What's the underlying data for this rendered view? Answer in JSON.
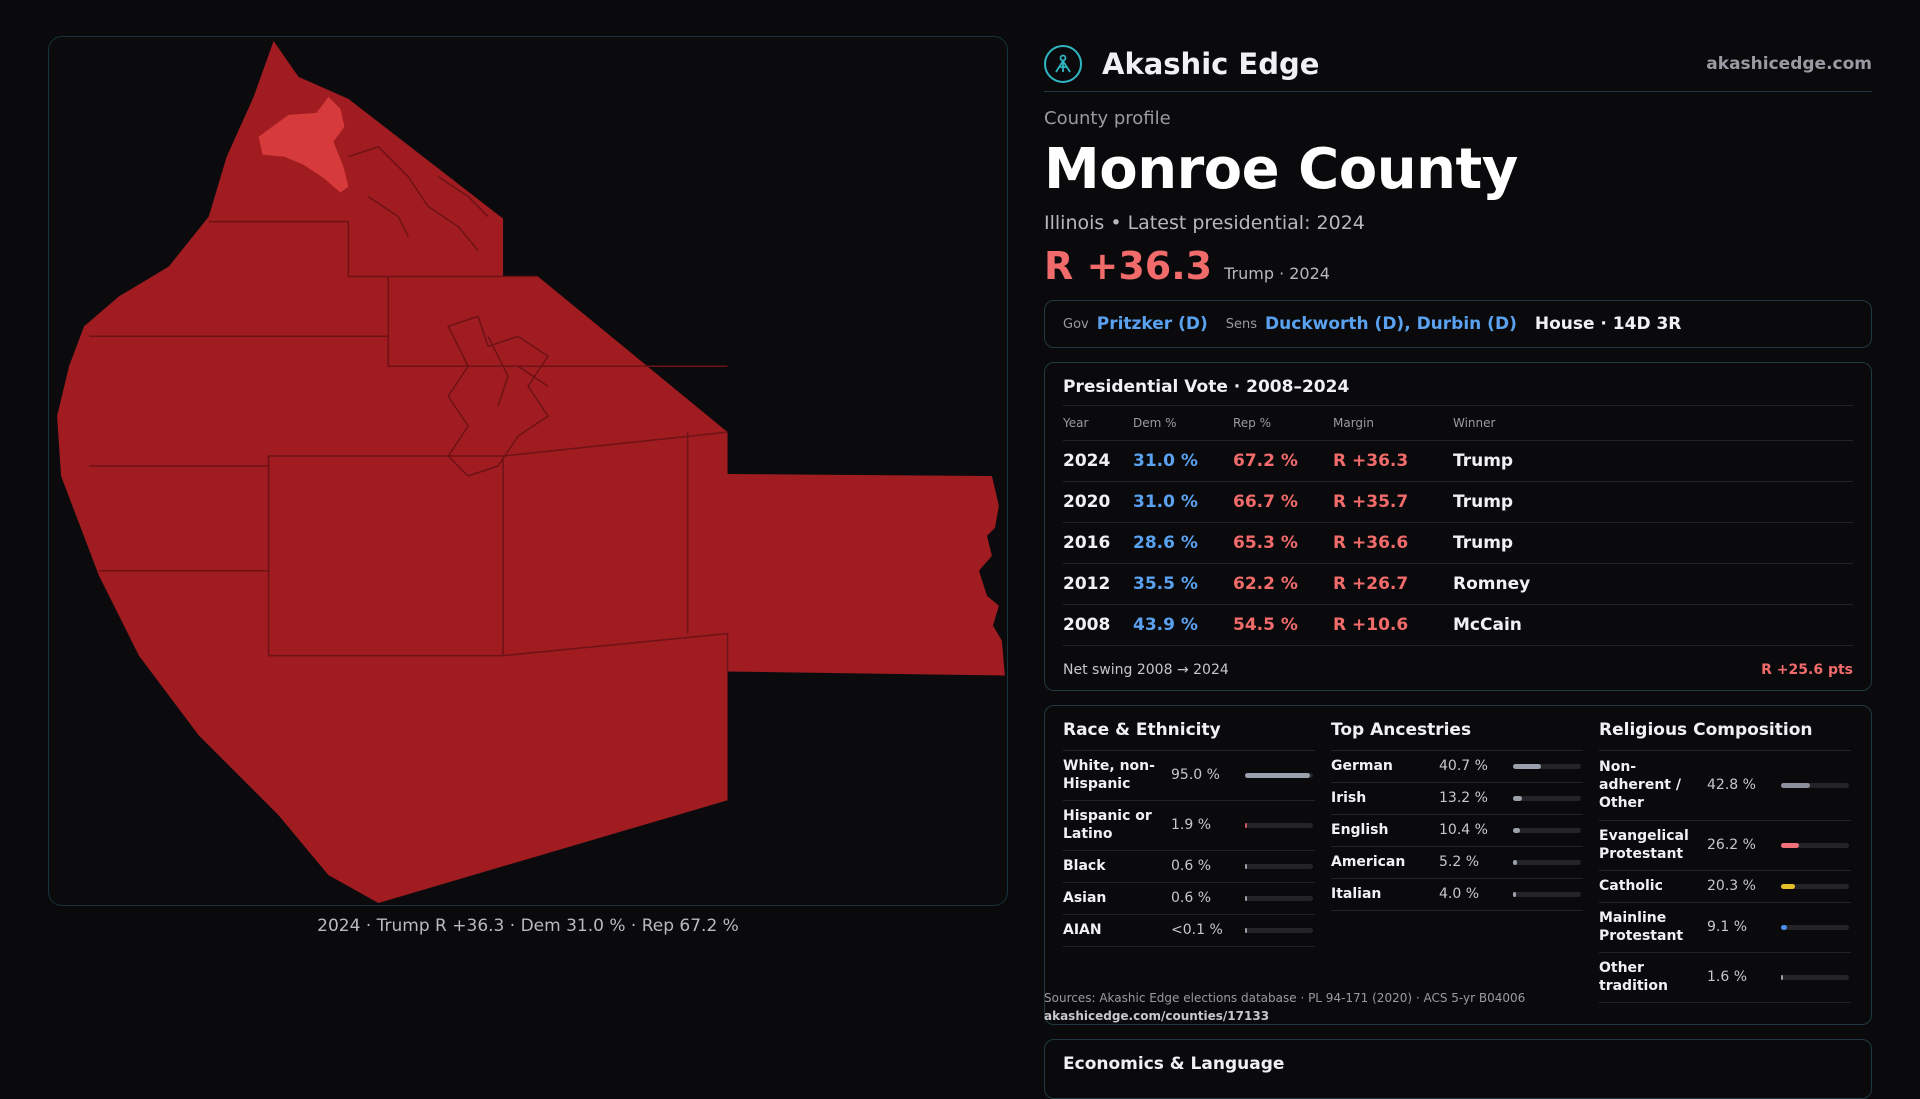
{
  "map": {
    "caption": "2024 · Trump R +36.3 · Dem 31.0 % · Rep 67.2 %",
    "fill_color": "#a01c20",
    "highlight_color": "#d63a3a"
  },
  "header": {
    "brand": "Akashic Edge",
    "domain": "akashicedge.com",
    "logo_icon": "compass-people-icon"
  },
  "profile": {
    "eyebrow": "County profile",
    "title": "Monroe County",
    "subtitle": "Illinois • Latest presidential: 2024",
    "margin": "R +36.3",
    "margin_note": "Trump · 2024"
  },
  "reps": {
    "gov_label": "Gov",
    "gov": "Pritzker (D)",
    "sens_label": "Sens",
    "sens": "Duckworth (D), Durbin (D)",
    "house": "House · 14D 3R"
  },
  "presidential": {
    "title": "Presidential Vote · 2008–2024",
    "headers": [
      "Year",
      "Dem %",
      "Rep %",
      "Margin",
      "Winner"
    ],
    "rows": [
      {
        "year": "2024",
        "dem": "31.0 %",
        "rep": "67.2 %",
        "margin": "R +36.3",
        "winner": "Trump"
      },
      {
        "year": "2020",
        "dem": "31.0 %",
        "rep": "66.7 %",
        "margin": "R +35.7",
        "winner": "Trump"
      },
      {
        "year": "2016",
        "dem": "28.6 %",
        "rep": "65.3 %",
        "margin": "R +36.6",
        "winner": "Trump"
      },
      {
        "year": "2012",
        "dem": "35.5 %",
        "rep": "62.2 %",
        "margin": "R +26.7",
        "winner": "Romney"
      },
      {
        "year": "2008",
        "dem": "43.9 %",
        "rep": "54.5 %",
        "margin": "R +10.6",
        "winner": "McCain"
      }
    ],
    "swing_label": "Net swing 2008 → 2024",
    "swing_value": "R +25.6 pts"
  },
  "race": {
    "title": "Race & Ethnicity",
    "items": [
      {
        "label": "White, non-Hispanic",
        "pct": "95.0 %",
        "value": 95.0,
        "color": "#9aa0ac"
      },
      {
        "label": "Hispanic or Latino",
        "pct": "1.9 %",
        "value": 1.9,
        "color": "#d0585a"
      },
      {
        "label": "Black",
        "pct": "0.6 %",
        "value": 0.6,
        "color": "#9aa0ac"
      },
      {
        "label": "Asian",
        "pct": "0.6 %",
        "value": 0.6,
        "color": "#9aa0ac"
      },
      {
        "label": "AIAN",
        "pct": "<0.1 %",
        "value": 0.05,
        "color": "#9aa0ac"
      }
    ]
  },
  "ancestry": {
    "title": "Top Ancestries",
    "items": [
      {
        "label": "German",
        "pct": "40.7 %",
        "value": 40.7,
        "color": "#9aa0ac"
      },
      {
        "label": "Irish",
        "pct": "13.2 %",
        "value": 13.2,
        "color": "#9aa0ac"
      },
      {
        "label": "English",
        "pct": "10.4 %",
        "value": 10.4,
        "color": "#9aa0ac"
      },
      {
        "label": "American",
        "pct": "5.2 %",
        "value": 5.2,
        "color": "#9aa0ac"
      },
      {
        "label": "Italian",
        "pct": "4.0 %",
        "value": 4.0,
        "color": "#9aa0ac"
      }
    ]
  },
  "religion": {
    "title": "Religious Composition",
    "items": [
      {
        "label": "Non-adherent / Other",
        "pct": "42.8 %",
        "value": 42.8,
        "color": "#8a909c"
      },
      {
        "label": "Evangelical Protestant",
        "pct": "26.2 %",
        "value": 26.2,
        "color": "#f2707a"
      },
      {
        "label": "Catholic",
        "pct": "20.3 %",
        "value": 20.3,
        "color": "#e6c02a"
      },
      {
        "label": "Mainline Protestant",
        "pct": "9.1 %",
        "value": 9.1,
        "color": "#4a8fe6"
      },
      {
        "label": "Other tradition",
        "pct": "1.6 %",
        "value": 1.6,
        "color": "#9aa0ac"
      }
    ]
  },
  "sources": {
    "text": "Sources: Akashic Edge elections database · PL 94-171 (2020) · ACS 5-yr B04006",
    "url": "akashicedge.com/counties/17133"
  },
  "economics": {
    "title": "Economics & Language"
  }
}
